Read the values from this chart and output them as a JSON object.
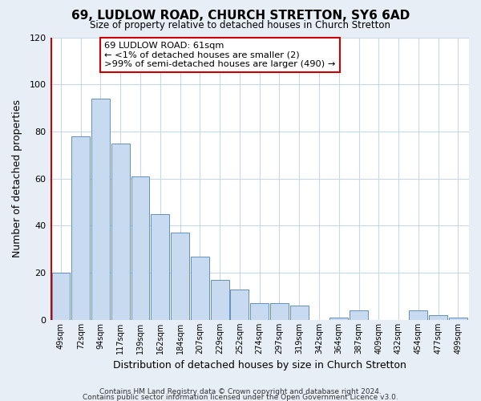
{
  "title": "69, LUDLOW ROAD, CHURCH STRETTON, SY6 6AD",
  "subtitle": "Size of property relative to detached houses in Church Stretton",
  "xlabel": "Distribution of detached houses by size in Church Stretton",
  "ylabel": "Number of detached properties",
  "footnote1": "Contains HM Land Registry data © Crown copyright and database right 2024.",
  "footnote2": "Contains public sector information licensed under the Open Government Licence v3.0.",
  "bar_labels": [
    "49sqm",
    "72sqm",
    "94sqm",
    "117sqm",
    "139sqm",
    "162sqm",
    "184sqm",
    "207sqm",
    "229sqm",
    "252sqm",
    "274sqm",
    "297sqm",
    "319sqm",
    "342sqm",
    "364sqm",
    "387sqm",
    "409sqm",
    "432sqm",
    "454sqm",
    "477sqm",
    "499sqm"
  ],
  "bar_values": [
    20,
    78,
    94,
    75,
    61,
    45,
    37,
    27,
    17,
    13,
    7,
    7,
    6,
    0,
    1,
    4,
    0,
    0,
    4,
    2,
    1
  ],
  "bar_color": "#c8daf0",
  "bar_edge_color": "#6090c0",
  "highlight_color": "#cc0000",
  "annotation_title": "69 LUDLOW ROAD: 61sqm",
  "annotation_line1": "← <1% of detached houses are smaller (2)",
  "annotation_line2": ">99% of semi-detached houses are larger (490) →",
  "annotation_box_color": "#ffffff",
  "annotation_box_edge_color": "#cc0000",
  "ylim": [
    0,
    120
  ],
  "yticks": [
    0,
    20,
    40,
    60,
    80,
    100,
    120
  ],
  "background_color": "#e8eef5",
  "plot_bg_color": "#ffffff",
  "grid_color": "#c8d8e8"
}
